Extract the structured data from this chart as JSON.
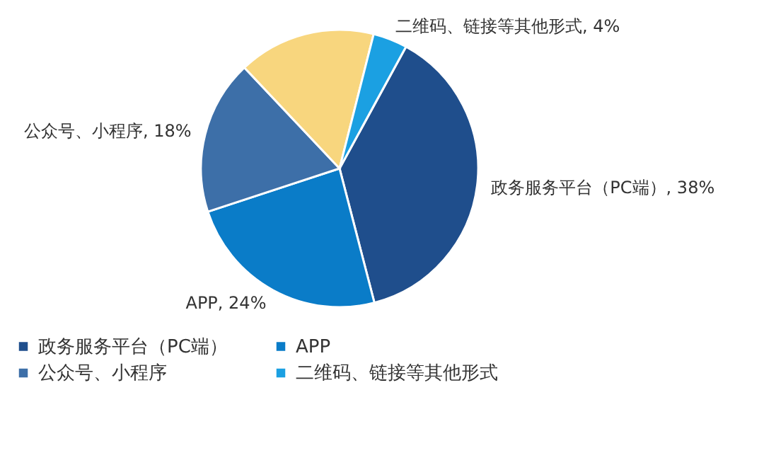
{
  "chart_data": {
    "type": "pie",
    "categories": [
      "政务服务平台（PC端）",
      "APP",
      "公众号、小程序",
      null,
      "二维码、链接等其他形式"
    ],
    "values": [
      38,
      24,
      18,
      16,
      4
    ],
    "colors": [
      "#1f4e8c",
      "#0a7cc8",
      "#3d6fa8",
      "#f8d67e",
      "#1ba0e2"
    ],
    "value_labels": [
      "政务服务平台（PC端）, 38%",
      "APP, 24%",
      "公众号、小程序, 18%",
      null,
      "二维码、链接等其他形式, 4%"
    ],
    "legend": "bottom"
  }
}
